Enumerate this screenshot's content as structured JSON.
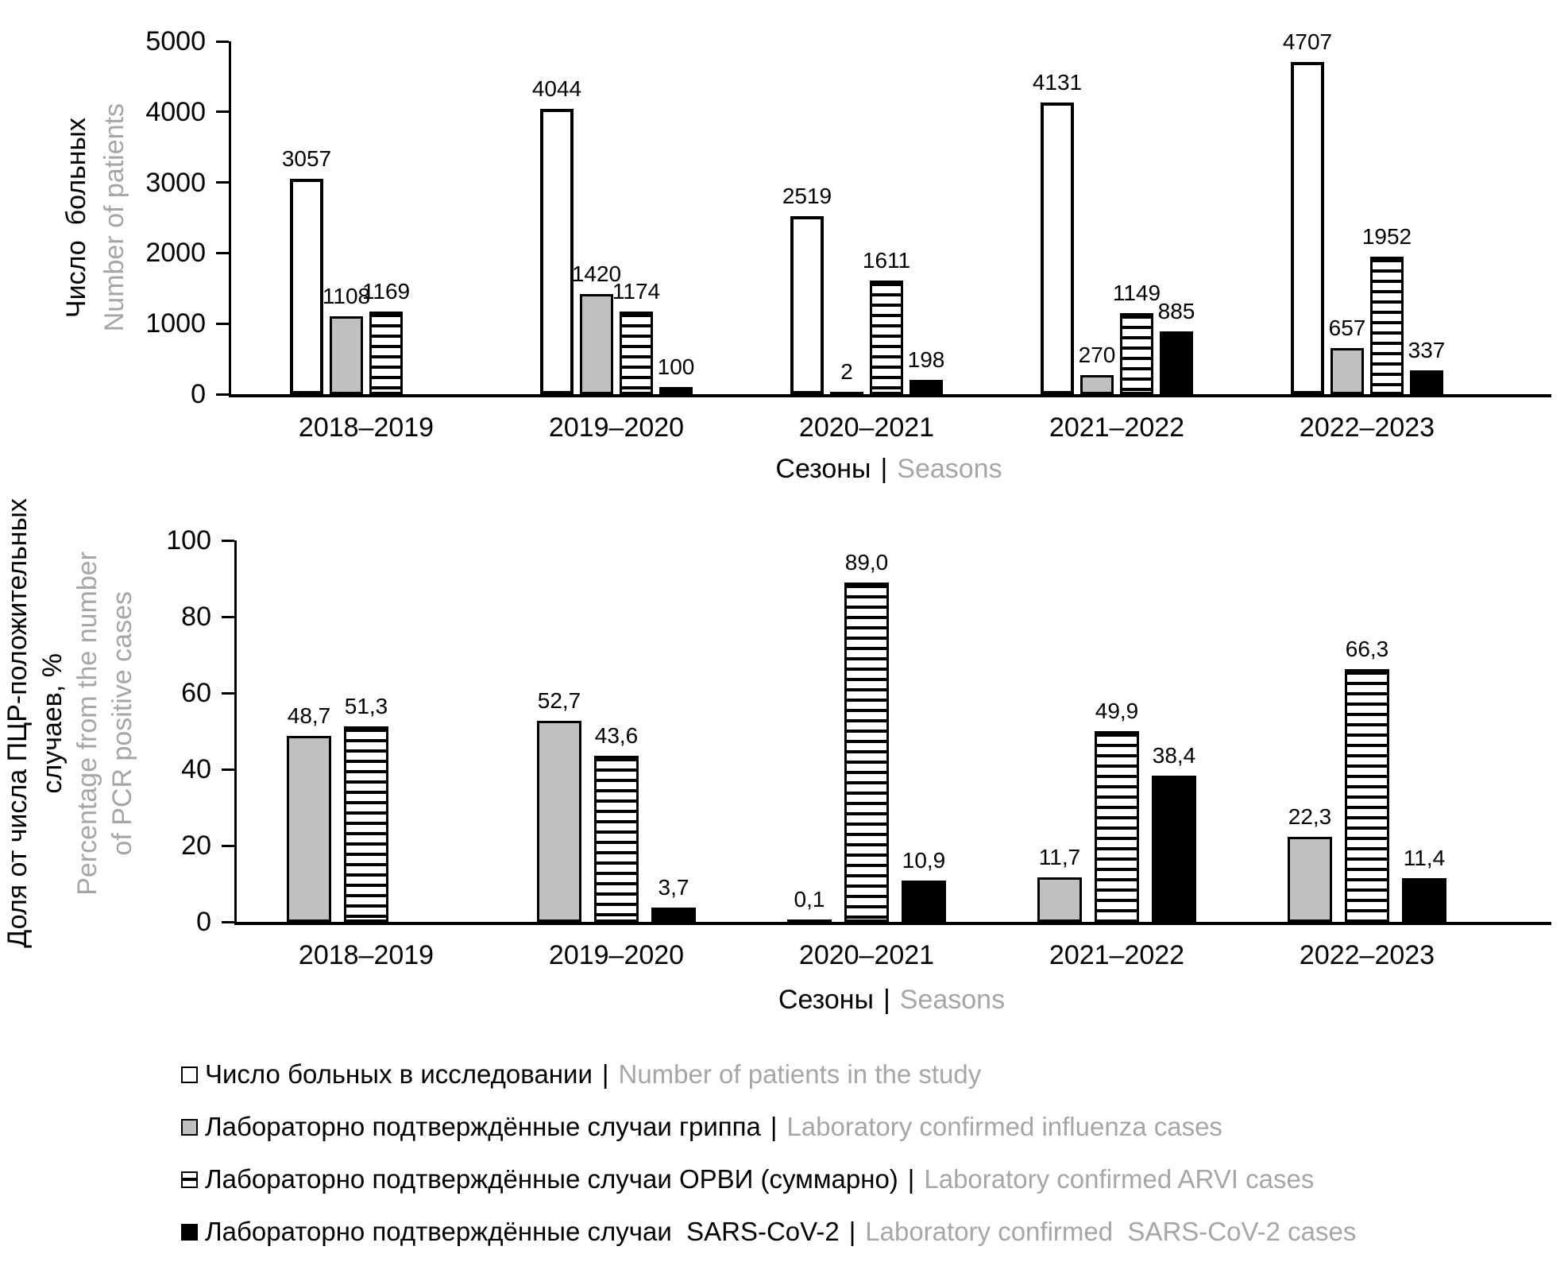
{
  "separator": "|",
  "colors": {
    "black": "#000000",
    "gray_text": "#a6a6a6",
    "gray_bar": "#c0c0c0",
    "white": "#ffffff"
  },
  "chart_data": [
    {
      "type": "bar",
      "ylabel_ru": "Число  больных",
      "ylabel_en": "Number of patients",
      "xlabel_ru": "Сезоны",
      "xlabel_en": "Seasons",
      "ylim": [
        0,
        5000
      ],
      "yticks": [
        0,
        1000,
        2000,
        3000,
        4000,
        5000
      ],
      "grid": false,
      "legend_position": "bottom",
      "categories": [
        "2018–2019",
        "2019–2020",
        "2020–2021",
        "2021–2022",
        "2022–2023"
      ],
      "series": [
        {
          "name_ru": "Число больных в исследовании",
          "name_en": "Number of patients in the study",
          "pattern": "white",
          "values": [
            3057,
            4044,
            2519,
            4131,
            4707
          ],
          "labels": [
            "3057",
            "4044",
            "2519",
            "4131",
            "4707"
          ]
        },
        {
          "name_ru": "Лабораторно подтверждённые случаи гриппа",
          "name_en": "Laboratory confirmed influenza cases",
          "pattern": "gray",
          "values": [
            1108,
            1420,
            2,
            270,
            657
          ],
          "labels": [
            "1108",
            "1420",
            "2",
            "270",
            "657"
          ]
        },
        {
          "name_ru": "Лабораторно подтверждённые случаи ОРВИ (суммарно)",
          "name_en": "Laboratory confirmed ARVI cases",
          "pattern": "striped",
          "values": [
            1169,
            1174,
            1611,
            1149,
            1952
          ],
          "labels": [
            "1169",
            "1174",
            "1611",
            "1149",
            "1952"
          ]
        },
        {
          "name_ru": "Лабораторно подтверждённые случаи  SARS-CoV-2",
          "name_en": "Laboratory confirmed  SARS-CoV-2 cases",
          "pattern": "black",
          "values": [
            null,
            100,
            198,
            885,
            337
          ],
          "labels": [
            "",
            "100",
            "198",
            "885",
            "337"
          ]
        }
      ]
    },
    {
      "type": "bar",
      "ylabel_ru_lines": [
        "Доля от числа ПЦР-положительных",
        "случаев, %"
      ],
      "ylabel_en_lines": [
        "Percentage from the number",
        "of PCR positive cases"
      ],
      "xlabel_ru": "Сезоны",
      "xlabel_en": "Seasons",
      "ylim": [
        0,
        100
      ],
      "yticks": [
        0,
        20,
        40,
        60,
        80,
        100
      ],
      "grid": false,
      "categories": [
        "2018–2019",
        "2019–2020",
        "2020–2021",
        "2021–2022",
        "2022–2023"
      ],
      "series": [
        {
          "name_ru": "Лабораторно подтверждённые случаи гриппа",
          "name_en": "Laboratory confirmed influenza cases",
          "pattern": "gray",
          "values": [
            48.7,
            52.7,
            0.1,
            11.7,
            22.3
          ],
          "labels": [
            "48,7",
            "52,7",
            "0,1",
            "11,7",
            "22,3"
          ]
        },
        {
          "name_ru": "Лабораторно подтверждённые случаи ОРВИ (суммарно)",
          "name_en": "Laboratory confirmed ARVI cases",
          "pattern": "striped",
          "values": [
            51.3,
            43.6,
            89.0,
            49.9,
            66.3
          ],
          "labels": [
            "51,3",
            "43,6",
            "89,0",
            "49,9",
            "66,3"
          ]
        },
        {
          "name_ru": "Лабораторно подтверждённые случаи  SARS-CoV-2",
          "name_en": "Laboratory confirmed  SARS-CoV-2 cases",
          "pattern": "black",
          "values": [
            null,
            3.7,
            10.9,
            38.4,
            11.4
          ],
          "labels": [
            "",
            "3,7",
            "10,9",
            "38,4",
            "11,4"
          ]
        }
      ]
    }
  ],
  "legend": {
    "items": [
      {
        "icon": "white-square",
        "ru": "Число больных в исследовании",
        "en": "Number of patients in the study"
      },
      {
        "icon": "gray-square",
        "ru": "Лабораторно подтверждённые случаи гриппа",
        "en": "Laboratory confirmed influenza cases"
      },
      {
        "icon": "striped-square",
        "ru": "Лабораторно подтверждённые случаи ОРВИ (суммарно)",
        "en": "Laboratory confirmed ARVI cases"
      },
      {
        "icon": "black-square",
        "ru": "Лабораторно подтверждённые случаи  SARS-CoV-2",
        "en": "Laboratory confirmed  SARS-CoV-2 cases"
      }
    ]
  }
}
